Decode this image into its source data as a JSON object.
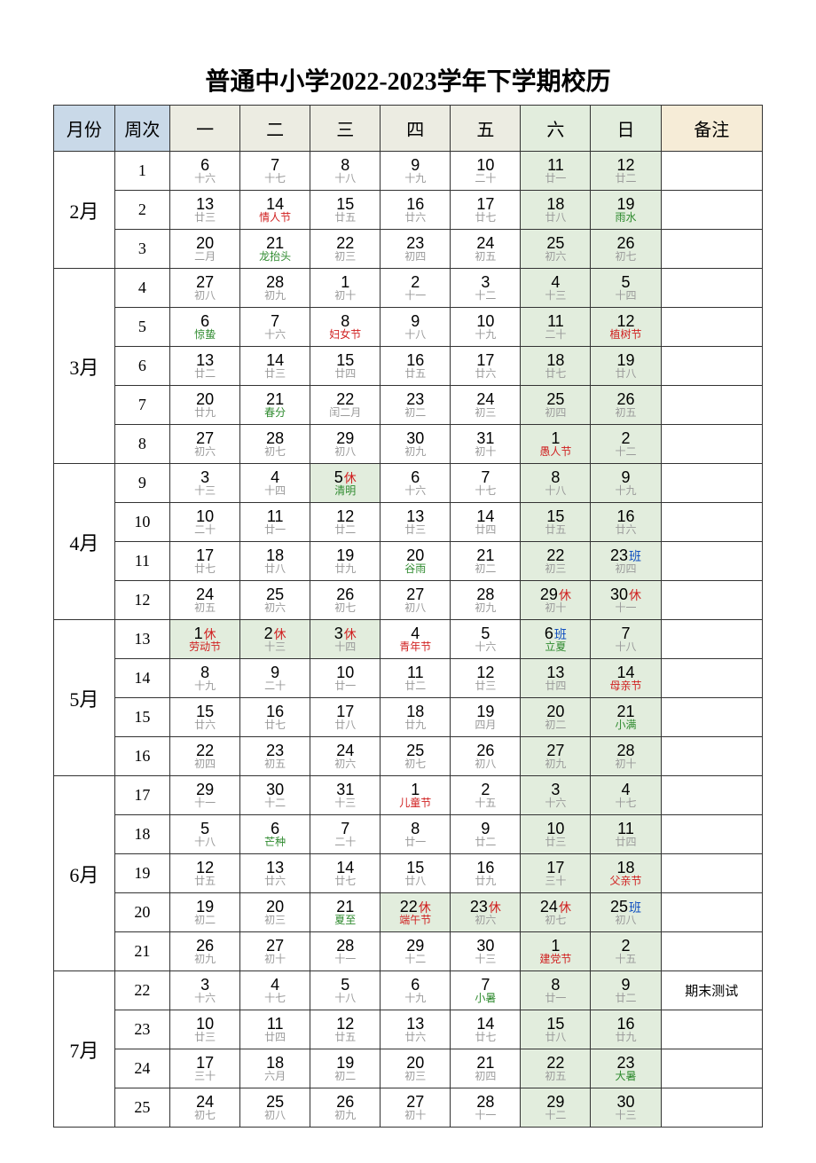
{
  "title": "普通中小学2022-2023学年下学期校历",
  "headers": {
    "month": "月份",
    "week": "周次",
    "d1": "一",
    "d2": "二",
    "d3": "三",
    "d4": "四",
    "d5": "五",
    "d6": "六",
    "d7": "日",
    "note": "备注"
  },
  "colors": {
    "header_month_bg": "#c9d9e8",
    "header_weekday_bg": "#ecece2",
    "header_weekend_bg": "#e2eddd",
    "header_note_bg": "#f6ecd7",
    "weekend_cell_bg": "#e2eddd",
    "sub_gray": "#9a9a9a",
    "sub_red": "#d02020",
    "sub_green": "#2e8a2e",
    "tag_blue": "#1050c0"
  },
  "tags": {
    "rest": "休",
    "class": "班"
  },
  "months": [
    {
      "label": "2月",
      "rowspan": 3,
      "weeks": [
        {
          "week": "1",
          "note": "",
          "days": [
            {
              "n": "6",
              "s": "十六"
            },
            {
              "n": "7",
              "s": "十七"
            },
            {
              "n": "8",
              "s": "十八"
            },
            {
              "n": "9",
              "s": "十九"
            },
            {
              "n": "10",
              "s": "二十"
            },
            {
              "n": "11",
              "s": "廿一",
              "wk": true
            },
            {
              "n": "12",
              "s": "廿二",
              "wk": true
            }
          ]
        },
        {
          "week": "2",
          "note": "",
          "days": [
            {
              "n": "13",
              "s": "廿三"
            },
            {
              "n": "14",
              "s": "情人节",
              "sc": "red"
            },
            {
              "n": "15",
              "s": "廿五"
            },
            {
              "n": "16",
              "s": "廿六"
            },
            {
              "n": "17",
              "s": "廿七"
            },
            {
              "n": "18",
              "s": "廿八",
              "wk": true
            },
            {
              "n": "19",
              "s": "雨水",
              "sc": "green",
              "wk": true
            }
          ]
        },
        {
          "week": "3",
          "note": "",
          "days": [
            {
              "n": "20",
              "s": "二月"
            },
            {
              "n": "21",
              "s": "龙抬头",
              "sc": "green"
            },
            {
              "n": "22",
              "s": "初三"
            },
            {
              "n": "23",
              "s": "初四"
            },
            {
              "n": "24",
              "s": "初五"
            },
            {
              "n": "25",
              "s": "初六",
              "wk": true
            },
            {
              "n": "26",
              "s": "初七",
              "wk": true
            }
          ]
        }
      ]
    },
    {
      "label": "3月",
      "rowspan": 5,
      "weeks": [
        {
          "week": "4",
          "note": "",
          "days": [
            {
              "n": "27",
              "s": "初八"
            },
            {
              "n": "28",
              "s": "初九"
            },
            {
              "n": "1",
              "s": "初十"
            },
            {
              "n": "2",
              "s": "十一"
            },
            {
              "n": "3",
              "s": "十二"
            },
            {
              "n": "4",
              "s": "十三",
              "wk": true
            },
            {
              "n": "5",
              "s": "十四",
              "wk": true
            }
          ]
        },
        {
          "week": "5",
          "note": "",
          "days": [
            {
              "n": "6",
              "s": "惊蛰",
              "sc": "green"
            },
            {
              "n": "7",
              "s": "十六"
            },
            {
              "n": "8",
              "s": "妇女节",
              "sc": "red"
            },
            {
              "n": "9",
              "s": "十八"
            },
            {
              "n": "10",
              "s": "十九"
            },
            {
              "n": "11",
              "s": "二十",
              "wk": true
            },
            {
              "n": "12",
              "s": "植树节",
              "sc": "red",
              "wk": true
            }
          ]
        },
        {
          "week": "6",
          "note": "",
          "days": [
            {
              "n": "13",
              "s": "廿二"
            },
            {
              "n": "14",
              "s": "廿三"
            },
            {
              "n": "15",
              "s": "廿四"
            },
            {
              "n": "16",
              "s": "廿五"
            },
            {
              "n": "17",
              "s": "廿六"
            },
            {
              "n": "18",
              "s": "廿七",
              "wk": true
            },
            {
              "n": "19",
              "s": "廿八",
              "wk": true
            }
          ]
        },
        {
          "week": "7",
          "note": "",
          "days": [
            {
              "n": "20",
              "s": "廿九"
            },
            {
              "n": "21",
              "s": "春分",
              "sc": "green"
            },
            {
              "n": "22",
              "s": "闰二月"
            },
            {
              "n": "23",
              "s": "初二"
            },
            {
              "n": "24",
              "s": "初三"
            },
            {
              "n": "25",
              "s": "初四",
              "wk": true
            },
            {
              "n": "26",
              "s": "初五",
              "wk": true
            }
          ]
        },
        {
          "week": "8",
          "note": "",
          "days": [
            {
              "n": "27",
              "s": "初六"
            },
            {
              "n": "28",
              "s": "初七"
            },
            {
              "n": "29",
              "s": "初八"
            },
            {
              "n": "30",
              "s": "初九"
            },
            {
              "n": "31",
              "s": "初十"
            },
            {
              "n": "1",
              "s": "愚人节",
              "sc": "red",
              "wk": true
            },
            {
              "n": "2",
              "s": "十二",
              "wk": true
            }
          ]
        }
      ]
    },
    {
      "label": "4月",
      "rowspan": 4,
      "weeks": [
        {
          "week": "9",
          "note": "",
          "days": [
            {
              "n": "3",
              "s": "十三"
            },
            {
              "n": "4",
              "s": "十四"
            },
            {
              "n": "5",
              "s": "清明",
              "sc": "green",
              "tag": "rest",
              "hol": true
            },
            {
              "n": "6",
              "s": "十六"
            },
            {
              "n": "7",
              "s": "十七"
            },
            {
              "n": "8",
              "s": "十八",
              "wk": true
            },
            {
              "n": "9",
              "s": "十九",
              "wk": true
            }
          ]
        },
        {
          "week": "10",
          "note": "",
          "days": [
            {
              "n": "10",
              "s": "二十"
            },
            {
              "n": "11",
              "s": "廿一"
            },
            {
              "n": "12",
              "s": "廿二"
            },
            {
              "n": "13",
              "s": "廿三"
            },
            {
              "n": "14",
              "s": "廿四"
            },
            {
              "n": "15",
              "s": "廿五",
              "wk": true
            },
            {
              "n": "16",
              "s": "廿六",
              "wk": true
            }
          ]
        },
        {
          "week": "11",
          "note": "",
          "days": [
            {
              "n": "17",
              "s": "廿七"
            },
            {
              "n": "18",
              "s": "廿八"
            },
            {
              "n": "19",
              "s": "廿九"
            },
            {
              "n": "20",
              "s": "谷雨",
              "sc": "green"
            },
            {
              "n": "21",
              "s": "初二"
            },
            {
              "n": "22",
              "s": "初三",
              "wk": true
            },
            {
              "n": "23",
              "s": "初四",
              "tag": "class",
              "wk": true
            }
          ]
        },
        {
          "week": "12",
          "note": "",
          "days": [
            {
              "n": "24",
              "s": "初五"
            },
            {
              "n": "25",
              "s": "初六"
            },
            {
              "n": "26",
              "s": "初七"
            },
            {
              "n": "27",
              "s": "初八"
            },
            {
              "n": "28",
              "s": "初九"
            },
            {
              "n": "29",
              "s": "初十",
              "tag": "rest",
              "wk": true,
              "hol": true
            },
            {
              "n": "30",
              "s": "十一",
              "tag": "rest",
              "wk": true,
              "hol": true
            }
          ]
        }
      ]
    },
    {
      "label": "5月",
      "rowspan": 4,
      "weeks": [
        {
          "week": "13",
          "note": "",
          "days": [
            {
              "n": "1",
              "s": "劳动节",
              "sc": "red",
              "tag": "rest",
              "hol": true
            },
            {
              "n": "2",
              "s": "十三",
              "tag": "rest",
              "hol": true
            },
            {
              "n": "3",
              "s": "十四",
              "tag": "rest",
              "hol": true
            },
            {
              "n": "4",
              "s": "青年节",
              "sc": "red"
            },
            {
              "n": "5",
              "s": "十六"
            },
            {
              "n": "6",
              "s": "立夏",
              "sc": "green",
              "tag": "class",
              "wk": true
            },
            {
              "n": "7",
              "s": "十八",
              "wk": true
            }
          ]
        },
        {
          "week": "14",
          "note": "",
          "days": [
            {
              "n": "8",
              "s": "十九"
            },
            {
              "n": "9",
              "s": "二十"
            },
            {
              "n": "10",
              "s": "廿一"
            },
            {
              "n": "11",
              "s": "廿二"
            },
            {
              "n": "12",
              "s": "廿三"
            },
            {
              "n": "13",
              "s": "廿四",
              "wk": true
            },
            {
              "n": "14",
              "s": "母亲节",
              "sc": "red",
              "wk": true
            }
          ]
        },
        {
          "week": "15",
          "note": "",
          "days": [
            {
              "n": "15",
              "s": "廿六"
            },
            {
              "n": "16",
              "s": "廿七"
            },
            {
              "n": "17",
              "s": "廿八"
            },
            {
              "n": "18",
              "s": "廿九"
            },
            {
              "n": "19",
              "s": "四月"
            },
            {
              "n": "20",
              "s": "初二",
              "wk": true
            },
            {
              "n": "21",
              "s": "小满",
              "sc": "green",
              "wk": true
            }
          ]
        },
        {
          "week": "16",
          "note": "",
          "days": [
            {
              "n": "22",
              "s": "初四"
            },
            {
              "n": "23",
              "s": "初五"
            },
            {
              "n": "24",
              "s": "初六"
            },
            {
              "n": "25",
              "s": "初七"
            },
            {
              "n": "26",
              "s": "初八"
            },
            {
              "n": "27",
              "s": "初九",
              "wk": true
            },
            {
              "n": "28",
              "s": "初十",
              "wk": true
            }
          ]
        }
      ]
    },
    {
      "label": "6月",
      "rowspan": 5,
      "weeks": [
        {
          "week": "17",
          "note": "",
          "days": [
            {
              "n": "29",
              "s": "十一"
            },
            {
              "n": "30",
              "s": "十二"
            },
            {
              "n": "31",
              "s": "十三"
            },
            {
              "n": "1",
              "s": "儿童节",
              "sc": "red"
            },
            {
              "n": "2",
              "s": "十五"
            },
            {
              "n": "3",
              "s": "十六",
              "wk": true
            },
            {
              "n": "4",
              "s": "十七",
              "wk": true
            }
          ]
        },
        {
          "week": "18",
          "note": "",
          "days": [
            {
              "n": "5",
              "s": "十八"
            },
            {
              "n": "6",
              "s": "芒种",
              "sc": "green"
            },
            {
              "n": "7",
              "s": "二十"
            },
            {
              "n": "8",
              "s": "廿一"
            },
            {
              "n": "9",
              "s": "廿二"
            },
            {
              "n": "10",
              "s": "廿三",
              "wk": true
            },
            {
              "n": "11",
              "s": "廿四",
              "wk": true
            }
          ]
        },
        {
          "week": "19",
          "note": "",
          "days": [
            {
              "n": "12",
              "s": "廿五"
            },
            {
              "n": "13",
              "s": "廿六"
            },
            {
              "n": "14",
              "s": "廿七"
            },
            {
              "n": "15",
              "s": "廿八"
            },
            {
              "n": "16",
              "s": "廿九"
            },
            {
              "n": "17",
              "s": "三十",
              "wk": true
            },
            {
              "n": "18",
              "s": "父亲节",
              "sc": "red",
              "wk": true
            }
          ]
        },
        {
          "week": "20",
          "note": "",
          "days": [
            {
              "n": "19",
              "s": "初二"
            },
            {
              "n": "20",
              "s": "初三"
            },
            {
              "n": "21",
              "s": "夏至",
              "sc": "green"
            },
            {
              "n": "22",
              "s": "端午节",
              "sc": "red",
              "tag": "rest",
              "hol": true
            },
            {
              "n": "23",
              "s": "初六",
              "tag": "rest",
              "hol": true
            },
            {
              "n": "24",
              "s": "初七",
              "tag": "rest",
              "wk": true,
              "hol": true
            },
            {
              "n": "25",
              "s": "初八",
              "tag": "class",
              "wk": true
            }
          ]
        },
        {
          "week": "21",
          "note": "",
          "days": [
            {
              "n": "26",
              "s": "初九"
            },
            {
              "n": "27",
              "s": "初十"
            },
            {
              "n": "28",
              "s": "十一"
            },
            {
              "n": "29",
              "s": "十二"
            },
            {
              "n": "30",
              "s": "十三"
            },
            {
              "n": "1",
              "s": "建党节",
              "sc": "red",
              "wk": true
            },
            {
              "n": "2",
              "s": "十五",
              "wk": true
            }
          ]
        }
      ]
    },
    {
      "label": "7月",
      "rowspan": 4,
      "weeks": [
        {
          "week": "22",
          "note": "期末测试",
          "days": [
            {
              "n": "3",
              "s": "十六"
            },
            {
              "n": "4",
              "s": "十七"
            },
            {
              "n": "5",
              "s": "十八"
            },
            {
              "n": "6",
              "s": "十九"
            },
            {
              "n": "7",
              "s": "小暑",
              "sc": "green"
            },
            {
              "n": "8",
              "s": "廿一",
              "wk": true
            },
            {
              "n": "9",
              "s": "廿二",
              "wk": true
            }
          ]
        },
        {
          "week": "23",
          "note": "",
          "days": [
            {
              "n": "10",
              "s": "廿三"
            },
            {
              "n": "11",
              "s": "廿四"
            },
            {
              "n": "12",
              "s": "廿五"
            },
            {
              "n": "13",
              "s": "廿六"
            },
            {
              "n": "14",
              "s": "廿七"
            },
            {
              "n": "15",
              "s": "廿八",
              "wk": true
            },
            {
              "n": "16",
              "s": "廿九",
              "wk": true
            }
          ]
        },
        {
          "week": "24",
          "note": "",
          "days": [
            {
              "n": "17",
              "s": "三十"
            },
            {
              "n": "18",
              "s": "六月"
            },
            {
              "n": "19",
              "s": "初二"
            },
            {
              "n": "20",
              "s": "初三"
            },
            {
              "n": "21",
              "s": "初四"
            },
            {
              "n": "22",
              "s": "初五",
              "wk": true
            },
            {
              "n": "23",
              "s": "大暑",
              "sc": "green",
              "wk": true
            }
          ]
        },
        {
          "week": "25",
          "note": "",
          "days": [
            {
              "n": "24",
              "s": "初七"
            },
            {
              "n": "25",
              "s": "初八"
            },
            {
              "n": "26",
              "s": "初九"
            },
            {
              "n": "27",
              "s": "初十"
            },
            {
              "n": "28",
              "s": "十一"
            },
            {
              "n": "29",
              "s": "十二",
              "wk": true
            },
            {
              "n": "30",
              "s": "十三",
              "wk": true
            }
          ]
        }
      ]
    }
  ]
}
